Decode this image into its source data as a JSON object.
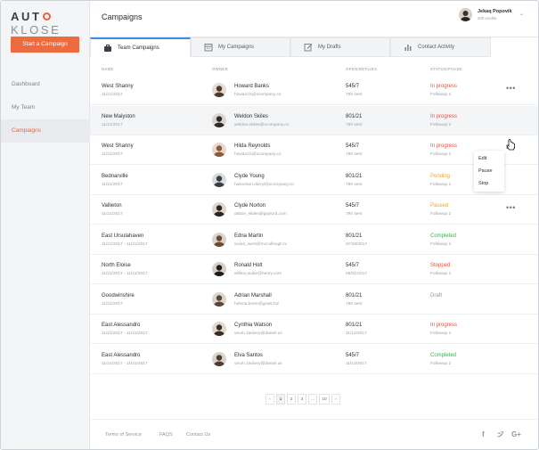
{
  "app": {
    "logo_left": "AUT",
    "logo_right": "KLOSE",
    "start_button": "Start a Campaign",
    "accent": "#ee6a3f"
  },
  "sidebar": {
    "items": [
      {
        "label": "Dashboard"
      },
      {
        "label": "My Team"
      },
      {
        "label": "Campaigns"
      }
    ]
  },
  "header": {
    "title": "Campaigns",
    "user_name": "Jekaq Popovik",
    "user_credits": "200 credits"
  },
  "tabs": [
    {
      "label": "Team Campaigns",
      "icon": "briefcase-icon"
    },
    {
      "label": "My Campaigns",
      "icon": "calendar-icon"
    },
    {
      "label": "My Drafts",
      "icon": "edit-icon"
    },
    {
      "label": "Contact Activity",
      "icon": "bar-chart-icon"
    }
  ],
  "table": {
    "headers": [
      "NAME",
      "OWNER",
      "OPEN/REPLIES",
      "STATUS/PHASE"
    ],
    "rows": [
      {
        "name": "West Shanny",
        "date": "11/21/2017",
        "owner": "Howard Banks",
        "email": "howard.b@xcompany.co",
        "open": "545/7",
        "sent": "790 sent",
        "status": "In progress",
        "status_color": "#ef4b3a",
        "phase": "Followup 2",
        "menu": true
      },
      {
        "name": "New Maiyston",
        "date": "11/21/2017",
        "owner": "Weldon Skiles",
        "email": "weldon.skiles@xcompany.co",
        "open": "801/21",
        "sent": "790 sent",
        "status": "In progress",
        "status_color": "#ef4b3a",
        "phase": "Followup 2",
        "menu": false
      },
      {
        "name": "West Shanny",
        "date": "11/21/2017",
        "owner": "Hilda Reynolds",
        "email": "howard.b@xcompany.co",
        "open": "545/7",
        "sent": "790 sent",
        "status": "In progress",
        "status_color": "#ef4b3a",
        "phase": "Followup 2",
        "menu": true
      },
      {
        "name": "Bednarville",
        "date": "11/21/2017",
        "owner": "Clyde Young",
        "email": "halvorson.darryl@xcompany.co",
        "open": "801/21",
        "sent": "790 sent",
        "status": "Pending",
        "status_color": "#f0a51e",
        "phase": "Followup 2",
        "menu": false
      },
      {
        "name": "Vallieton",
        "date": "11/21/2017",
        "owner": "Clyde Norton",
        "email": "dalton_skiles@gaylord.com",
        "open": "545/7",
        "sent": "790 sent",
        "status": "Paused",
        "status_color": "#f0a51e",
        "phase": "Followup 2",
        "menu": true
      },
      {
        "name": "East Ursulahaven",
        "date": "11/21/2017 - 11/21/2017",
        "owner": "Edna Martin",
        "email": "vivian_west@mccullough.tv",
        "open": "801/21",
        "sent": "07/28/2017",
        "status": "Completed",
        "status_color": "#35b24a",
        "phase": "Followup 2",
        "menu": false
      },
      {
        "name": "North Eloise",
        "date": "11/21/2017 - 11/21/2017",
        "owner": "Ronald Holt",
        "email": "willms.audie@henry.com",
        "open": "545/7",
        "sent": "06/01/2017",
        "status": "Stopped",
        "status_color": "#ef4b3a",
        "phase": "Followup 2",
        "menu": false
      },
      {
        "name": "Goodwinshire",
        "date": "11/21/2017",
        "owner": "Adrian Marshall",
        "email": "helena.borer@grant.biz",
        "open": "801/21",
        "sent": "790 sent",
        "status": "Draft",
        "status_color": "#8f959e",
        "phase": "",
        "menu": false
      },
      {
        "name": "East Alessandro",
        "date": "11/21/2017 - 11/21/2017",
        "owner": "Cynthia Watson",
        "email": "veum.zackery@daniel.us",
        "open": "801/21",
        "sent": "11/12/2017",
        "status": "In progress",
        "status_color": "#ef4b3a",
        "phase": "Followup 2",
        "menu": false
      },
      {
        "name": "East Alessandro",
        "date": "11/21/2017 - 11/21/2017",
        "owner": "Elva Santos",
        "email": "veum.zackery@daniel.us",
        "open": "545/7",
        "sent": "11/12/2017",
        "status": "Completed",
        "status_color": "#35b24a",
        "phase": "Followup 2",
        "menu": false
      }
    ]
  },
  "row_menu": {
    "items": [
      "Edit",
      "Pause",
      "Stop"
    ]
  },
  "pagination": {
    "prev": "‹",
    "pages": [
      "1",
      "2",
      "3",
      "...",
      "10"
    ],
    "next": "›",
    "current": "1"
  },
  "footer": {
    "links": [
      "Terms of Service",
      "FAQS",
      "Contact Us"
    ],
    "social": [
      {
        "icon": "facebook-icon",
        "glyph": "f"
      },
      {
        "icon": "twitter-icon",
        "glyph": "t"
      },
      {
        "icon": "google-plus-icon",
        "glyph": "G+"
      }
    ]
  }
}
